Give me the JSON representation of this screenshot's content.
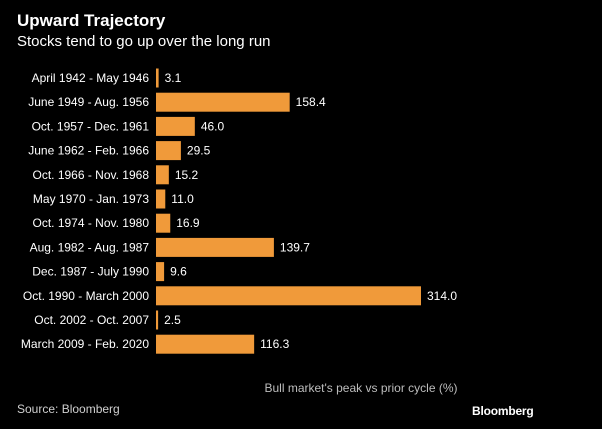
{
  "header": {
    "title": "Upward Trajectory",
    "subtitle": "Stocks tend to go up over the long run"
  },
  "footer": {
    "source": "Source: Bloomberg",
    "brand": "Bloomberg"
  },
  "colors": {
    "bar": "#f09a3a",
    "background": "#000000",
    "label": "#ffffff"
  },
  "chart_data": {
    "type": "bar",
    "orientation": "horizontal",
    "title": "Upward Trajectory",
    "subtitle": "Stocks tend to go up over the long run",
    "xlabel": "Bull market's peak vs prior cycle (%)",
    "ylabel": "",
    "categories": [
      "April 1942 - May 1946",
      "June 1949 - Aug. 1956",
      "Oct. 1957 - Dec. 1961",
      "June 1962 - Feb. 1966",
      "Oct. 1966 - Nov. 1968",
      "May 1970 - Jan. 1973",
      "Oct. 1974 - Nov. 1980",
      "Aug. 1982 - Aug. 1987",
      "Dec. 1987 - July 1990",
      "Oct. 1990 - March 2000",
      "Oct. 2002 - Oct. 2007",
      "March 2009 - Feb. 2020"
    ],
    "values": [
      3.1,
      158.4,
      46.0,
      29.5,
      15.2,
      11.0,
      16.9,
      139.7,
      9.6,
      314.0,
      2.5,
      116.3
    ],
    "value_labels": [
      "3.1",
      "158.4",
      "46.0",
      "29.5",
      "15.2",
      "11.0",
      "16.9",
      "139.7",
      "9.6",
      "314.0",
      "2.5",
      "116.3"
    ],
    "xlim": [
      0,
      314.0
    ],
    "grid": false,
    "legend": "none"
  }
}
